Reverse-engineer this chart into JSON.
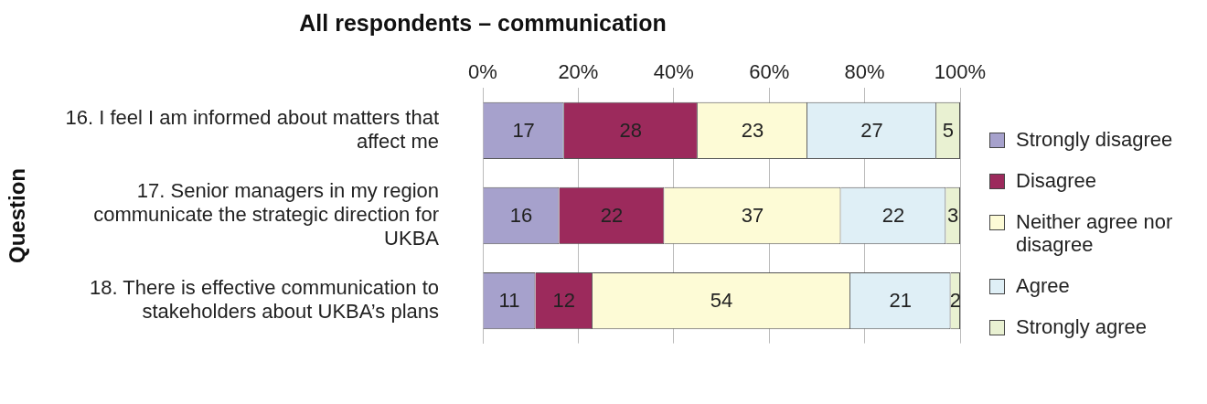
{
  "chart_data": {
    "type": "bar",
    "orientation": "horizontal",
    "stacked": true,
    "title": "All respondents – communication",
    "ylabel": "Question",
    "categories": [
      "16. I feel I am informed about matters that affect me",
      "17. Senior managers in my region communicate the strategic direction for UKBA",
      "18. There is effective communication to stakeholders about UKBA’s plans"
    ],
    "series": [
      {
        "name": "Strongly disagree",
        "color": "#a6a1cc",
        "values": [
          17,
          16,
          11
        ]
      },
      {
        "name": "Disagree",
        "color": "#9c2a5c",
        "values": [
          28,
          22,
          12
        ]
      },
      {
        "name": "Neither agree nor disagree",
        "color": "#fdfbd6",
        "values": [
          23,
          37,
          54
        ]
      },
      {
        "name": "Agree",
        "color": "#dfeff6",
        "values": [
          27,
          22,
          21
        ]
      },
      {
        "name": "Strongly agree",
        "color": "#e9f1d2",
        "values": [
          5,
          3,
          2
        ]
      }
    ],
    "xlim": [
      0,
      100
    ],
    "xticks": [
      {
        "value": 0,
        "label": "0%"
      },
      {
        "value": 20,
        "label": "20%"
      },
      {
        "value": 40,
        "label": "40%"
      },
      {
        "value": 60,
        "label": "60%"
      },
      {
        "value": 80,
        "label": "80%"
      },
      {
        "value": 100,
        "label": "100%"
      }
    ],
    "grid": "x",
    "legend": "right",
    "data_labels": true
  }
}
